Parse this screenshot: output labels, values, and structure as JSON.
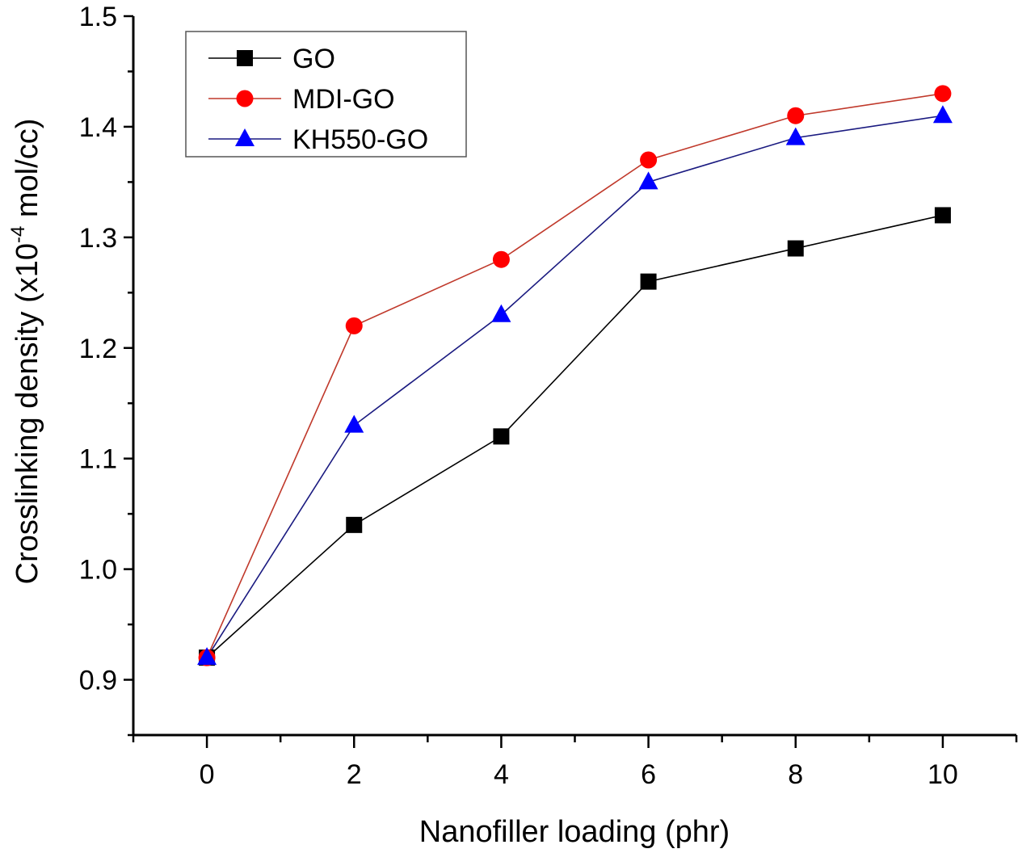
{
  "chart_data": {
    "type": "line",
    "title": "",
    "xlabel": "Nanofiller loading (phr)",
    "ylabel_main": "Crosslinking density (x10",
    "ylabel_sup": "-4",
    "ylabel_tail": " mol/cc)",
    "x": [
      0,
      2,
      4,
      6,
      8,
      10
    ],
    "xlim": [
      -1,
      11
    ],
    "ylim": [
      0.85,
      1.5
    ],
    "x_ticks": [
      "0",
      "2",
      "4",
      "6",
      "8",
      "10"
    ],
    "x_tick_values": [
      0,
      2,
      4,
      6,
      8,
      10
    ],
    "x_minor_ticks": [
      -1,
      1,
      3,
      5,
      7,
      9,
      11
    ],
    "y_ticks": [
      "0.9",
      "1.0",
      "1.1",
      "1.2",
      "1.3",
      "1.4",
      "1.5"
    ],
    "y_tick_values": [
      0.9,
      1.0,
      1.1,
      1.2,
      1.3,
      1.4,
      1.5
    ],
    "y_minor_ticks": [
      0.85,
      0.95,
      1.05,
      1.15,
      1.25,
      1.35,
      1.45
    ],
    "grid": false,
    "legend_position": "top-left",
    "series": [
      {
        "name": "GO",
        "marker": "square",
        "marker_color": "#000000",
        "line_color": "#000000",
        "values": [
          0.92,
          1.04,
          1.12,
          1.26,
          1.29,
          1.32
        ]
      },
      {
        "name": "MDI-GO",
        "marker": "circle",
        "marker_color": "#ff0000",
        "line_color": "#c0392b",
        "values": [
          0.92,
          1.22,
          1.28,
          1.37,
          1.41,
          1.43
        ]
      },
      {
        "name": "KH550-GO",
        "marker": "triangle",
        "marker_color": "#0000ff",
        "line_color": "#1a1a80",
        "values": [
          0.92,
          1.13,
          1.23,
          1.35,
          1.39,
          1.41
        ]
      }
    ]
  }
}
